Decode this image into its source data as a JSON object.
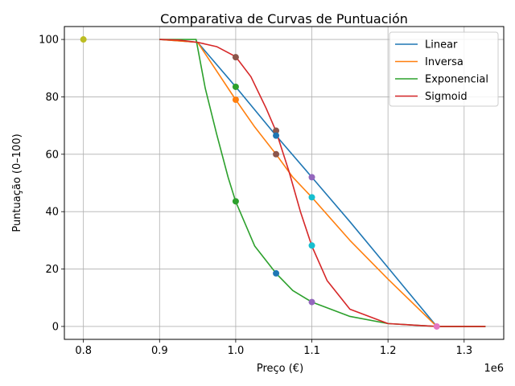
{
  "chart_data": {
    "type": "line",
    "title": "Comparativa de Curvas de Puntuación",
    "xlabel": "Preço (€)",
    "ylabel": "Puntuação (0–100)",
    "x_multiplier_label": "1e6",
    "xlim": [
      775000,
      1352000
    ],
    "ylim": [
      -4.5,
      104.5
    ],
    "xticks": [
      800000,
      900000,
      1000000,
      1100000,
      1200000,
      1300000
    ],
    "xtick_labels": [
      "0.8",
      "0.9",
      "1.0",
      "1.1",
      "1.2",
      "1.3"
    ],
    "yticks": [
      0,
      20,
      40,
      60,
      80,
      100
    ],
    "ytick_labels": [
      "0",
      "20",
      "40",
      "60",
      "80",
      "100"
    ],
    "grid": true,
    "legend_position": "top-right",
    "series": [
      {
        "name": "Linear",
        "color": "#1f77b4",
        "x": [
          900000,
          950000,
          1000000,
          1053000,
          1100000,
          1150000,
          1200000,
          1264000,
          1328000
        ],
        "y": [
          100,
          99,
          83.5,
          66.5,
          52,
          36.5,
          20.5,
          0,
          0
        ]
      },
      {
        "name": "Inversa",
        "color": "#ff7f0e",
        "x": [
          900000,
          950000,
          975000,
          1000000,
          1025000,
          1053000,
          1075000,
          1100000,
          1150000,
          1200000,
          1264000,
          1328000
        ],
        "y": [
          100,
          99,
          89,
          79,
          69.5,
          60,
          52,
          45,
          30,
          16.5,
          0,
          0
        ]
      },
      {
        "name": "Exponencial",
        "color": "#2ca02c",
        "x": [
          900000,
          948000,
          960000,
          975000,
          990000,
          1000000,
          1025000,
          1053000,
          1075000,
          1100000,
          1150000,
          1200000,
          1264000,
          1328000
        ],
        "y": [
          100,
          100,
          83,
          67,
          52,
          43.5,
          28,
          18.5,
          12.5,
          8.5,
          3.5,
          1,
          0,
          0
        ]
      },
      {
        "name": "Sigmoid",
        "color": "#d62728",
        "x": [
          900000,
          925000,
          950000,
          975000,
          1000000,
          1020000,
          1040000,
          1053000,
          1070000,
          1085000,
          1100000,
          1120000,
          1150000,
          1200000,
          1264000,
          1328000
        ],
        "y": [
          100,
          99.8,
          99,
          97.5,
          94,
          87,
          76,
          68,
          54,
          40,
          28,
          16,
          6,
          1,
          0,
          0
        ]
      }
    ],
    "markers": [
      {
        "x": 800000,
        "y": 100,
        "color": "#bcbd22"
      },
      {
        "x": 1000000,
        "y": 93.8,
        "color": "#8c564b"
      },
      {
        "x": 1000000,
        "y": 83.5,
        "color": "#2ca02c"
      },
      {
        "x": 1000000,
        "y": 79,
        "color": "#ff7f0e"
      },
      {
        "x": 1000000,
        "y": 43.6,
        "color": "#2ca02c"
      },
      {
        "x": 1053000,
        "y": 68.2,
        "color": "#8c564b"
      },
      {
        "x": 1053000,
        "y": 66.5,
        "color": "#1f77b4"
      },
      {
        "x": 1053000,
        "y": 60,
        "color": "#8c564b"
      },
      {
        "x": 1053000,
        "y": 18.5,
        "color": "#1f77b4"
      },
      {
        "x": 1100000,
        "y": 52,
        "color": "#9467bd"
      },
      {
        "x": 1100000,
        "y": 45,
        "color": "#17becf"
      },
      {
        "x": 1100000,
        "y": 28.2,
        "color": "#17becf"
      },
      {
        "x": 1100000,
        "y": 8.5,
        "color": "#9467bd"
      },
      {
        "x": 1264000,
        "y": 0,
        "color": "#e377c2"
      }
    ]
  }
}
